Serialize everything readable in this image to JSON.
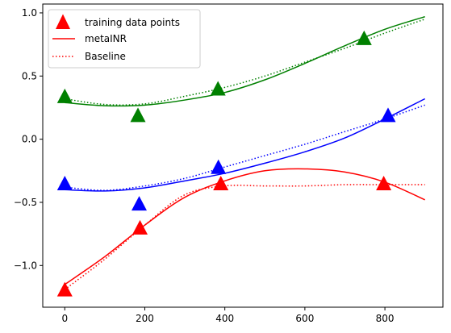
{
  "chart_data": {
    "type": "line",
    "title": "",
    "xlabel": "",
    "ylabel": "",
    "xlim": [
      -55,
      945
    ],
    "ylim": [
      -1.33,
      1.07
    ],
    "x_ticks": [
      0,
      200,
      400,
      600,
      800
    ],
    "y_ticks": [
      -1.0,
      -0.5,
      0.0,
      0.5,
      1.0
    ],
    "x_tick_labels": [
      "0",
      "200",
      "400",
      "600",
      "800"
    ],
    "y_tick_labels": [
      "−1.0",
      "−0.5",
      "0.0",
      "0.5",
      "1.0"
    ],
    "grid": false,
    "legend": {
      "placement": "top-left",
      "entries": [
        "training data points",
        "metaINR",
        "Baseline"
      ]
    },
    "groups": [
      {
        "color": "#008000",
        "points": {
          "x": [
            0,
            183,
            383,
            748
          ],
          "y": [
            0.33,
            0.18,
            0.39,
            0.79
          ]
        },
        "metaINR": {
          "x": [
            0,
            100,
            200,
            300,
            400,
            500,
            600,
            700,
            800,
            900
          ],
          "y": [
            0.29,
            0.265,
            0.27,
            0.31,
            0.37,
            0.47,
            0.6,
            0.74,
            0.87,
            0.97
          ]
        },
        "baseline": {
          "x": [
            0,
            100,
            200,
            300,
            400,
            500,
            600,
            700,
            800,
            900
          ],
          "y": [
            0.32,
            0.275,
            0.28,
            0.34,
            0.41,
            0.5,
            0.61,
            0.72,
            0.84,
            0.95
          ]
        }
      },
      {
        "color": "#0000ff",
        "points": {
          "x": [
            0,
            186,
            384,
            808
          ],
          "y": [
            -0.36,
            -0.52,
            -0.23,
            0.18
          ]
        },
        "metaINR": {
          "x": [
            0,
            100,
            200,
            300,
            400,
            500,
            600,
            700,
            800,
            900
          ],
          "y": [
            -0.4,
            -0.41,
            -0.385,
            -0.33,
            -0.27,
            -0.19,
            -0.1,
            0.01,
            0.16,
            0.32
          ]
        },
        "baseline": {
          "x": [
            0,
            100,
            200,
            300,
            400,
            500,
            600,
            700,
            800,
            900
          ],
          "y": [
            -0.38,
            -0.405,
            -0.37,
            -0.31,
            -0.22,
            -0.13,
            -0.04,
            0.06,
            0.16,
            0.27
          ]
        }
      },
      {
        "color": "#ff0000",
        "points": {
          "x": [
            0,
            188,
            390,
            797
          ],
          "y": [
            -1.2,
            -0.71,
            -0.36,
            -0.36
          ]
        },
        "metaINR": {
          "x": [
            0,
            100,
            200,
            300,
            400,
            500,
            600,
            700,
            800,
            900
          ],
          "y": [
            -1.15,
            -0.93,
            -0.68,
            -0.46,
            -0.33,
            -0.25,
            -0.235,
            -0.26,
            -0.34,
            -0.48
          ]
        },
        "baseline": {
          "x": [
            0,
            100,
            200,
            300,
            400,
            500,
            600,
            700,
            800,
            900
          ],
          "y": [
            -1.19,
            -0.95,
            -0.68,
            -0.44,
            -0.37,
            -0.37,
            -0.37,
            -0.36,
            -0.36,
            -0.36
          ]
        }
      }
    ]
  }
}
